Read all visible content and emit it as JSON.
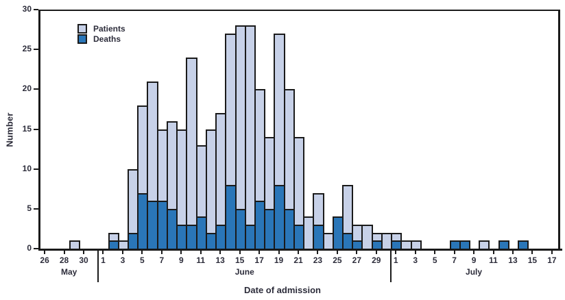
{
  "chart_data": {
    "type": "bar",
    "stacked": true,
    "title": "",
    "xlabel": "Date of admission",
    "ylabel": "Number",
    "ylim": [
      0,
      30
    ],
    "yticks": [
      0,
      5,
      10,
      15,
      20,
      25,
      30
    ],
    "grid": false,
    "legend_position": "top-left",
    "series_names": [
      "Patients",
      "Deaths"
    ],
    "colors": {
      "patients_fill": "#c7d1e8",
      "deaths_fill": "#2a76b8",
      "outline": "#1a1a1a",
      "text": "#2c2c3a"
    },
    "months": [
      {
        "name": "May",
        "start_day": 26,
        "end_day": 31,
        "tick_days": [
          26,
          28,
          30
        ]
      },
      {
        "name": "June",
        "start_day": 1,
        "end_day": 30,
        "tick_days": [
          1,
          3,
          5,
          7,
          9,
          11,
          13,
          15,
          17,
          19,
          21,
          23,
          25,
          27,
          29
        ]
      },
      {
        "name": "July",
        "start_day": 1,
        "end_day": 17,
        "tick_days": [
          1,
          3,
          5,
          7,
          9,
          11,
          13,
          15,
          17
        ]
      }
    ],
    "bars": [
      {
        "month": "May",
        "day": 29,
        "patients": 1,
        "deaths": 0
      },
      {
        "month": "June",
        "day": 2,
        "patients": 2,
        "deaths": 1
      },
      {
        "month": "June",
        "day": 3,
        "patients": 1,
        "deaths": 0
      },
      {
        "month": "June",
        "day": 4,
        "patients": 10,
        "deaths": 2
      },
      {
        "month": "June",
        "day": 5,
        "patients": 18,
        "deaths": 7
      },
      {
        "month": "June",
        "day": 6,
        "patients": 21,
        "deaths": 6
      },
      {
        "month": "June",
        "day": 7,
        "patients": 15,
        "deaths": 6
      },
      {
        "month": "June",
        "day": 8,
        "patients": 16,
        "deaths": 5
      },
      {
        "month": "June",
        "day": 9,
        "patients": 15,
        "deaths": 3
      },
      {
        "month": "June",
        "day": 10,
        "patients": 24,
        "deaths": 3
      },
      {
        "month": "June",
        "day": 11,
        "patients": 13,
        "deaths": 4
      },
      {
        "month": "June",
        "day": 12,
        "patients": 15,
        "deaths": 2
      },
      {
        "month": "June",
        "day": 13,
        "patients": 17,
        "deaths": 3
      },
      {
        "month": "June",
        "day": 14,
        "patients": 27,
        "deaths": 8
      },
      {
        "month": "June",
        "day": 15,
        "patients": 28,
        "deaths": 5
      },
      {
        "month": "June",
        "day": 16,
        "patients": 28,
        "deaths": 3
      },
      {
        "month": "June",
        "day": 17,
        "patients": 20,
        "deaths": 6
      },
      {
        "month": "June",
        "day": 18,
        "patients": 14,
        "deaths": 5
      },
      {
        "month": "June",
        "day": 19,
        "patients": 27,
        "deaths": 8
      },
      {
        "month": "June",
        "day": 20,
        "patients": 20,
        "deaths": 5
      },
      {
        "month": "June",
        "day": 21,
        "patients": 14,
        "deaths": 3
      },
      {
        "month": "June",
        "day": 22,
        "patients": 4,
        "deaths": 0
      },
      {
        "month": "June",
        "day": 23,
        "patients": 7,
        "deaths": 3
      },
      {
        "month": "June",
        "day": 24,
        "patients": 2,
        "deaths": 0
      },
      {
        "month": "June",
        "day": 25,
        "patients": 4,
        "deaths": 4
      },
      {
        "month": "June",
        "day": 26,
        "patients": 8,
        "deaths": 2
      },
      {
        "month": "June",
        "day": 27,
        "patients": 3,
        "deaths": 1
      },
      {
        "month": "June",
        "day": 28,
        "patients": 3,
        "deaths": 0
      },
      {
        "month": "June",
        "day": 29,
        "patients": 2,
        "deaths": 1
      },
      {
        "month": "June",
        "day": 30,
        "patients": 2,
        "deaths": 0
      },
      {
        "month": "July",
        "day": 1,
        "patients": 2,
        "deaths": 1
      },
      {
        "month": "July",
        "day": 2,
        "patients": 1,
        "deaths": 0
      },
      {
        "month": "July",
        "day": 3,
        "patients": 1,
        "deaths": 0
      },
      {
        "month": "July",
        "day": 7,
        "patients": 1,
        "deaths": 1
      },
      {
        "month": "July",
        "day": 8,
        "patients": 1,
        "deaths": 1
      },
      {
        "month": "July",
        "day": 10,
        "patients": 1,
        "deaths": 0
      },
      {
        "month": "July",
        "day": 12,
        "patients": 1,
        "deaths": 1
      },
      {
        "month": "July",
        "day": 14,
        "patients": 1,
        "deaths": 1
      }
    ]
  }
}
